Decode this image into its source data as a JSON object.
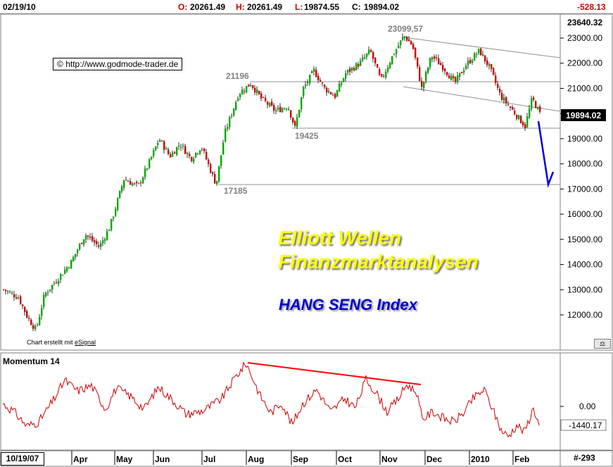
{
  "header": {
    "date": "02/19/10",
    "open_label": "O:",
    "open": "20261.49",
    "high_label": "H:",
    "high": "20261.49",
    "low_label": "L:",
    "low": "19874.55",
    "close_label": "C:",
    "close": "19894.02",
    "change": "-528.13"
  },
  "price_panel": {
    "top_value": "23640.32",
    "current_value": "19894.02",
    "copyright": "http://www.godmode-trader.de",
    "copyright_icon": "©",
    "credit_prefix": "Chart erstellt mit ",
    "credit_link": "eSignal",
    "watermark_line1": "Elliott Wellen",
    "watermark_line2": "Finanzmarktanalysen",
    "index_name": "HANG SENG Index",
    "scale_button": "icon-scale"
  },
  "momentum_panel": {
    "title": "Momentum 14",
    "zero_label": "0.00",
    "current_label": "-1440.17"
  },
  "footer": {
    "start_date": "10/19/07",
    "bar_count": "#-293"
  },
  "colors": {
    "up_candle": "#00aa00",
    "down_candle": "#cc0000",
    "momentum_line": "#cc0000",
    "divergence_line": "#ff0000",
    "projection_arrow": "#0000dd",
    "watermark": "#ffff00",
    "index_label": "#0000d0"
  },
  "chart_data": [
    {
      "type": "candlestick",
      "title": "HANG SENG Index",
      "x_ticks": [
        "Apr",
        "May",
        "Jun",
        "Jul",
        "Aug",
        "Sep",
        "Oct",
        "Nov",
        "Dec",
        "2010",
        "Feb"
      ],
      "y_ticks": [
        "23000.00",
        "22000.00",
        "21000.00",
        "20000.00",
        "19000.00",
        "18000.00",
        "17000.00",
        "16000.00",
        "15000.00",
        "14000.00",
        "13000.00",
        "12000.00"
      ],
      "y_values": [
        23000,
        22000,
        21000,
        20000,
        19000,
        18000,
        17000,
        16000,
        15000,
        14000,
        13000,
        12000
      ],
      "ylim": [
        11000,
        23640.32
      ],
      "approx_closes": [
        {
          "period": "Mar",
          "value": 13000
        },
        {
          "period": "early Mar",
          "value": 11400
        },
        {
          "period": "Apr",
          "value": 14200
        },
        {
          "period": "May",
          "value": 17000
        },
        {
          "period": "Jun",
          "value": 18400
        },
        {
          "period": "early Jul",
          "value": 17185
        },
        {
          "period": "Aug",
          "value": 21196
        },
        {
          "period": "Sep",
          "value": 19425
        },
        {
          "period": "Oct",
          "value": 21500
        },
        {
          "period": "Nov",
          "value": 23099.57
        },
        {
          "period": "Dec",
          "value": 21300
        },
        {
          "period": "2010",
          "value": 22400
        },
        {
          "period": "Feb",
          "value": 19894.02
        }
      ],
      "levels": [
        {
          "label": "23099,57",
          "value": 23099.57
        },
        {
          "label": "21196",
          "value": 21196
        },
        {
          "label": "19425",
          "value": 19425
        },
        {
          "label": "17185",
          "value": 17185
        }
      ],
      "annotations": [
        "descending channel from Nov high",
        "projection arrow toward 17185"
      ]
    },
    {
      "type": "line",
      "title": "Momentum 14",
      "y_ticks": [
        "0.00"
      ],
      "current": -1440.17,
      "approx_values": [
        {
          "period": "Mar",
          "value": 300
        },
        {
          "period": "Apr",
          "value": 1800
        },
        {
          "period": "May",
          "value": 900
        },
        {
          "period": "Jun",
          "value": 1500
        },
        {
          "period": "Jul",
          "value": 0
        },
        {
          "period": "Aug",
          "value": 3300
        },
        {
          "period": "Sep",
          "value": -1100
        },
        {
          "period": "Oct",
          "value": 800
        },
        {
          "period": "Nov",
          "value": 1200
        },
        {
          "period": "Dec",
          "value": -300
        },
        {
          "period": "2010",
          "value": 1000
        },
        {
          "period": "Feb",
          "value": -1440.17
        }
      ],
      "annotations": [
        "bearish divergence line Aug to Nov"
      ]
    }
  ]
}
